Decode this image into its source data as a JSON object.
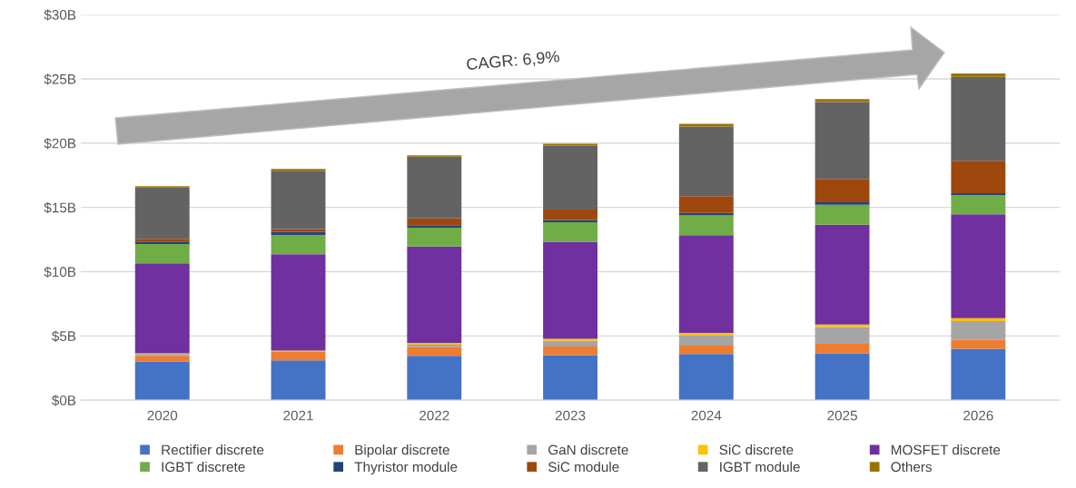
{
  "chart_data": {
    "type": "bar",
    "stacked": true,
    "categories": [
      "2020",
      "2021",
      "2022",
      "2023",
      "2024",
      "2025",
      "2026"
    ],
    "ylim": [
      0,
      30
    ],
    "yticks": [
      {
        "value": 0,
        "label": "$0B"
      },
      {
        "value": 5,
        "label": "$5B"
      },
      {
        "value": 10,
        "label": "$10B"
      },
      {
        "value": 15,
        "label": "$15B"
      },
      {
        "value": 20,
        "label": "$20B"
      },
      {
        "value": 25,
        "label": "$25B"
      },
      {
        "value": 30,
        "label": "$30B"
      }
    ],
    "grid": "y",
    "legend": "bottom",
    "annotations": [
      "CAGR: 6,9%"
    ],
    "series": [
      {
        "name": "Rectifier discrete",
        "color": "#4472c4",
        "values": [
          3.0,
          3.1,
          3.45,
          3.5,
          3.6,
          3.65,
          4.0
        ]
      },
      {
        "name": "Bipolar discrete",
        "color": "#ed7d31",
        "values": [
          0.45,
          0.65,
          0.68,
          0.68,
          0.65,
          0.74,
          0.68
        ]
      },
      {
        "name": "GaN discrete",
        "color": "#a5a5a5",
        "values": [
          0.15,
          null,
          0.19,
          0.43,
          0.78,
          1.3,
          1.48
        ]
      },
      {
        "name": "SiC discrete",
        "color": "#ffc000",
        "values": [
          0.05,
          0.1,
          0.14,
          0.16,
          0.21,
          0.19,
          0.22
        ]
      },
      {
        "name": "MOSFET discrete",
        "color": "#7030a0",
        "values": [
          7.0,
          7.5,
          7.5,
          7.54,
          7.6,
          7.77,
          8.08
        ]
      },
      {
        "name": "IGBT discrete",
        "color": "#70ad47",
        "values": [
          1.5,
          1.5,
          1.46,
          1.54,
          1.54,
          1.55,
          1.49
        ]
      },
      {
        "name": "Thyristor module",
        "color": "#264478",
        "values": [
          0.2,
          0.24,
          0.19,
          0.17,
          0.19,
          0.19,
          0.16
        ]
      },
      {
        "name": "SiC module",
        "color": "#9e480e",
        "values": [
          0.2,
          0.23,
          0.54,
          0.81,
          1.3,
          1.82,
          2.52
        ]
      },
      {
        "name": "IGBT module",
        "color": "#636363",
        "values": [
          4.0,
          4.53,
          4.79,
          4.98,
          5.42,
          5.98,
          6.53
        ]
      },
      {
        "name": "Others",
        "color": "#997300",
        "values": [
          0.1,
          0.14,
          0.12,
          0.14,
          0.21,
          0.24,
          0.27
        ]
      }
    ]
  }
}
